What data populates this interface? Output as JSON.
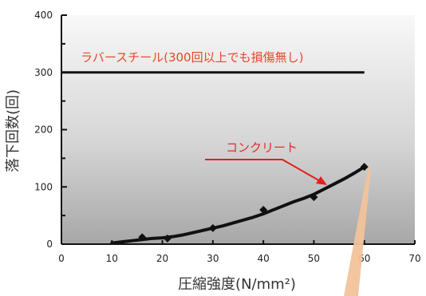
{
  "chart_data": {
    "type": "line",
    "xlabel": "圧縮強度(N/mm²)",
    "ylabel": "落下回数(回)",
    "xlim": [
      0,
      70
    ],
    "ylim": [
      0,
      400
    ],
    "x_ticks": [
      "0",
      "10",
      "20",
      "30",
      "40",
      "50",
      "60",
      "70"
    ],
    "y_ticks": [
      "0",
      "100",
      "200",
      "300",
      "400"
    ],
    "grid": false,
    "background": "gray gradient",
    "series": [
      {
        "name": "ラバースチール(300回以上でも損傷無し)",
        "color": "#111111",
        "x": [
          0,
          60
        ],
        "y": [
          300,
          300
        ]
      },
      {
        "name": "コンクリート",
        "color": "#111111",
        "x": [
          10,
          12,
          14,
          16,
          18,
          20,
          22,
          24,
          26,
          28,
          30,
          32,
          34,
          36,
          38,
          40,
          42,
          44,
          46,
          48,
          50,
          52,
          54,
          56,
          58,
          60
        ],
        "y": [
          2,
          4,
          6,
          8,
          10,
          11,
          13,
          16,
          20,
          24,
          28,
          32,
          37,
          42,
          47,
          53,
          60,
          67,
          74,
          80,
          87,
          96,
          105,
          114,
          124,
          135
        ]
      }
    ],
    "points": {
      "x": [
        16,
        21,
        30,
        40,
        50,
        60
      ],
      "y": [
        12,
        10,
        28,
        60,
        82,
        135
      ]
    },
    "annotations": [
      {
        "text": "ラバースチール(300回以上でも損傷無し)",
        "color": "#e8472c"
      },
      {
        "text": "コンクリート",
        "color": "#e52a2a"
      }
    ],
    "colors": {
      "accent_red": "#e31f1f",
      "highlight_orange": "#f2c39a",
      "line": "#111111"
    }
  }
}
